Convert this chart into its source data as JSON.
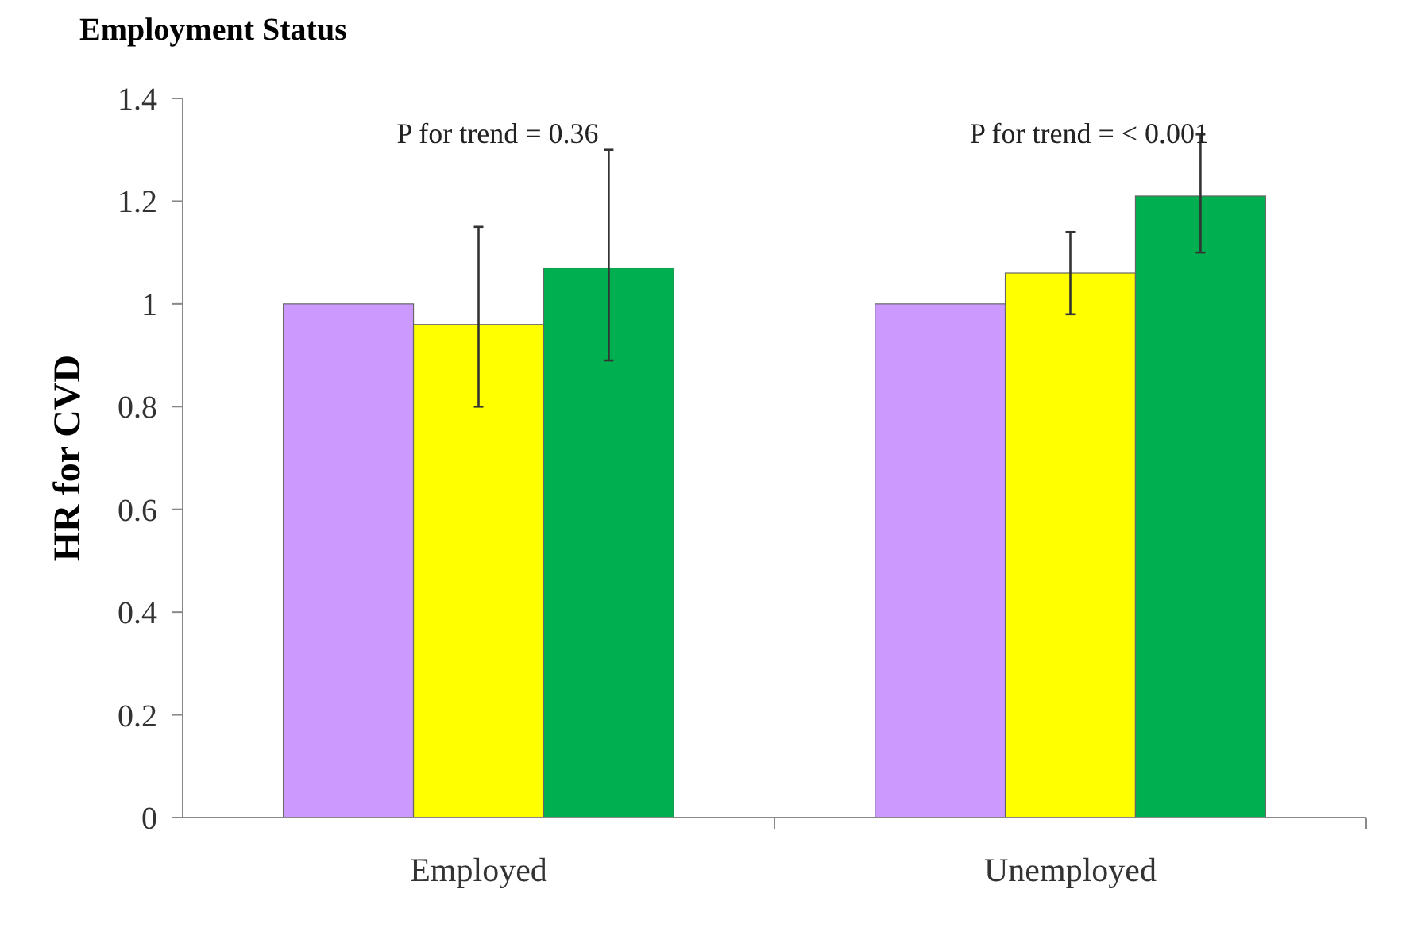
{
  "chart_data": {
    "type": "bar",
    "title": "Employment Status",
    "ylabel": "HR for CVD",
    "categories": [
      "Employed",
      "Unemployed"
    ],
    "series": [
      {
        "color": "#cc99ff",
        "values": [
          1,
          1
        ]
      },
      {
        "color": "#ffff00",
        "values": [
          0.96,
          1.06
        ],
        "errors": [
          [
            0.8,
            1.15
          ],
          [
            0.98,
            1.14
          ]
        ]
      },
      {
        "color": "#00b050",
        "values": [
          1.07,
          1.21
        ],
        "errors": [
          [
            0.89,
            1.3
          ],
          [
            1.1,
            1.33
          ]
        ]
      }
    ],
    "ylim": [
      0,
      1.4
    ],
    "yticks": [
      0,
      0.2,
      0.4,
      0.6,
      0.8,
      1,
      {
        "value": 1.2,
        "label": "1.2"
      },
      {
        "value": 1.4,
        "label": "1.4"
      }
    ],
    "annotations": [
      "P for trend = 0.36",
      "P for trend = < 0.001"
    ],
    "grid": false
  }
}
